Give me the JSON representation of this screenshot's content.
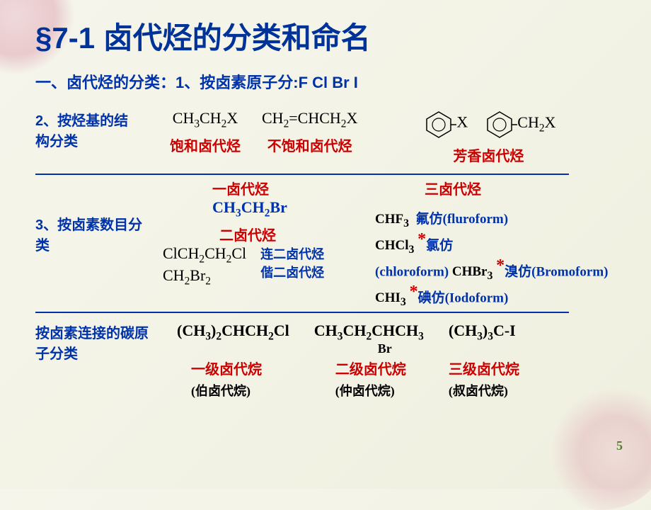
{
  "title": "§7-1  卤代烃的分类和命名",
  "subtitle_lead": "一、卤代烃的分类：1、按卤素原子分:",
  "halogens": "F Cl Br I",
  "section2": {
    "label": "2、按烃基的结构分类",
    "items": [
      {
        "formula_html": "CH<sub>3</sub>CH<sub>2</sub>X",
        "name": "饱和卤代烃"
      },
      {
        "formula_html": "CH<sub>2</sub>=CHCH<sub>2</sub>X",
        "name": "不饱和卤代烃"
      },
      {
        "benzene1": "X",
        "benzene2_html": "CH<sub>2</sub>X",
        "name": "芳香卤代烃"
      }
    ]
  },
  "section3": {
    "label": "3、按卤素数目分类",
    "mono": {
      "title": "一卤代烃",
      "formula_html": "CH<sub>3</sub>CH<sub>2</sub>Br"
    },
    "di": {
      "title": "二卤代烃",
      "rows": [
        {
          "f_html": "ClCH<sub>2</sub>CH<sub>2</sub>Cl",
          "desc": "连二卤代烃"
        },
        {
          "f_html": "CH<sub>2</sub>Br<sub>2</sub>",
          "desc": "偕二卤代烃"
        }
      ]
    },
    "tri": {
      "title": "三卤代烃",
      "items": [
        {
          "f_html": "CHF<sub>3</sub>",
          "name": "氟仿(fluroform)",
          "star": false
        },
        {
          "f_html": "CHCl<sub>3</sub>",
          "name": "氯仿",
          "star": true
        },
        {
          "cont": "(chloroform) ",
          "f_html": "CHBr<sub>3</sub>",
          "name": "溴仿(Bromoform)",
          "star": true
        },
        {
          "f_html": "CHI<sub>3</sub>",
          "name": "碘仿(Iodoform)",
          "star": true
        }
      ]
    }
  },
  "section4": {
    "label": "按卤素连接的碳原子分类",
    "items": [
      {
        "f_html": "(CH<sub>3</sub>)<sub>2</sub>CHCH<sub>2</sub>Cl",
        "name": "一级卤代烷",
        "alt": "(伯卤代烷)"
      },
      {
        "f_html": "CH<sub>3</sub>CH<sub>2</sub>CHCH<sub>3</sub>",
        "br_below": "Br",
        "name": "二级卤代烷",
        "alt": "(仲卤代烷)"
      },
      {
        "f_html": "(CH<sub>3</sub>)<sub>3</sub>C-I",
        "name": "三级卤代烷",
        "alt": "(叔卤代烷)"
      }
    ]
  },
  "page_number": "5"
}
